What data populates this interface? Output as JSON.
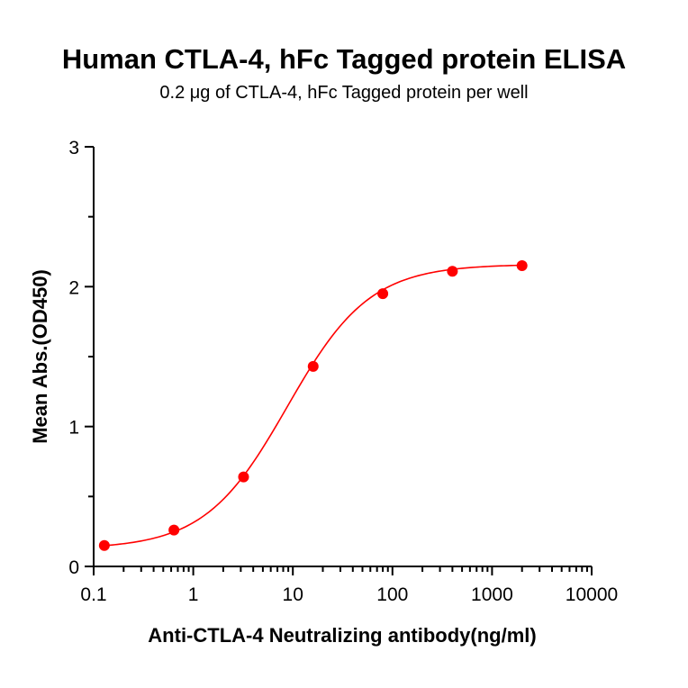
{
  "chart_data": {
    "type": "scatter",
    "title": "Human CTLA-4, hFc Tagged protein ELISA",
    "subtitle": "0.2 μg of CTLA-4, hFc Tagged protein per well",
    "xlabel": "Anti-CTLA-4 Neutralizing antibody(ng/ml)",
    "ylabel": "Mean Abs.(OD450)",
    "xscale": "log",
    "xlim": [
      0.1,
      10000
    ],
    "ylim": [
      0,
      3
    ],
    "x_ticks": [
      "0.1",
      "1",
      "10",
      "100",
      "1000",
      "10000"
    ],
    "y_ticks": [
      "0",
      "1",
      "2",
      "3"
    ],
    "grid": false,
    "color": "#ff0000",
    "series": [
      {
        "x": [
          0.128,
          0.64,
          3.2,
          16,
          80,
          400,
          2000
        ],
        "y": [
          0.15,
          0.26,
          0.64,
          1.43,
          1.95,
          2.11,
          2.15
        ]
      }
    ]
  }
}
